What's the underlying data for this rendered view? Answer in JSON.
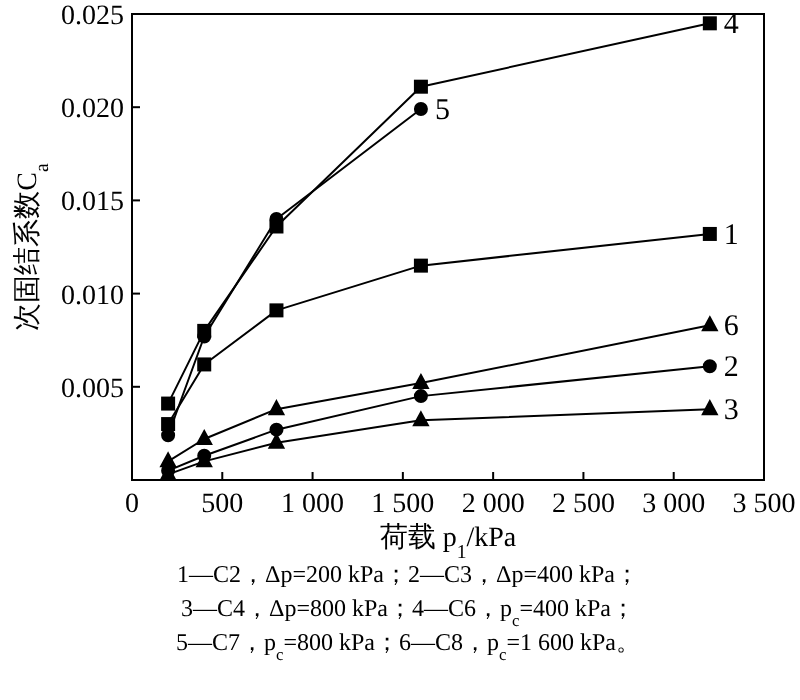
{
  "chart_data": {
    "type": "line",
    "xlabel": "荷载 p$_{1}$/kPa",
    "ylabel": "次固结系数C$_{a}$",
    "xlim": [
      0,
      3500
    ],
    "ylim": [
      0,
      0.025
    ],
    "xticks": [
      {
        "value": 0,
        "label": "0"
      },
      {
        "value": 500,
        "label": "500"
      },
      {
        "value": 1000,
        "label": "1 000"
      },
      {
        "value": 1500,
        "label": "1 500"
      },
      {
        "value": 2000,
        "label": "2 000"
      },
      {
        "value": 2500,
        "label": "2 500"
      },
      {
        "value": 3000,
        "label": "3 000"
      },
      {
        "value": 3500,
        "label": "3 500"
      }
    ],
    "yticks": [
      {
        "value": 0.005,
        "label": "0.005"
      },
      {
        "value": 0.01,
        "label": "0.010"
      },
      {
        "value": 0.015,
        "label": "0.015"
      },
      {
        "value": 0.02,
        "label": "0.020"
      },
      {
        "value": 0.025,
        "label": "0.025"
      }
    ],
    "grid": false,
    "line_style": "solid",
    "series": [
      {
        "name": "4",
        "color": "#000000",
        "marker": "square",
        "x": [
          200,
          400,
          800,
          1600,
          3200
        ],
        "values": [
          0.0041,
          0.008,
          0.0136,
          0.0211,
          0.0245
        ]
      },
      {
        "name": "5",
        "color": "#000000",
        "marker": "circle",
        "x": [
          200,
          400,
          800,
          1600
        ],
        "values": [
          0.0024,
          0.0077,
          0.014,
          0.0199
        ]
      },
      {
        "name": "1",
        "color": "#000000",
        "marker": "square",
        "x": [
          200,
          400,
          800,
          1600,
          3200
        ],
        "values": [
          0.003,
          0.0062,
          0.0091,
          0.0115,
          0.0132
        ]
      },
      {
        "name": "6",
        "color": "#000000",
        "marker": "triangle",
        "x": [
          200,
          400,
          800,
          1600,
          3200
        ],
        "values": [
          0.001,
          0.0022,
          0.0038,
          0.0052,
          0.0083
        ]
      },
      {
        "name": "2",
        "color": "#000000",
        "marker": "circle",
        "x": [
          200,
          400,
          800,
          1600,
          3200
        ],
        "values": [
          0.0005,
          0.0013,
          0.0027,
          0.0045,
          0.0061
        ]
      },
      {
        "name": "3",
        "color": "#000000",
        "marker": "triangle",
        "x": [
          200,
          400,
          800,
          1600,
          3200
        ],
        "values": [
          0.0003,
          0.001,
          0.002,
          0.0032,
          0.0038
        ]
      }
    ],
    "annotations": [
      "1—C2，Δp=200 kPa；2—C3，Δp=400 kPa；",
      "3—C4，Δp=800 kPa；4—C6，p$_{c}$=400 kPa；",
      "5—C7，p$_{c}$=800 kPa；6—C8，p$_{c}$=1 600 kPa。"
    ]
  }
}
